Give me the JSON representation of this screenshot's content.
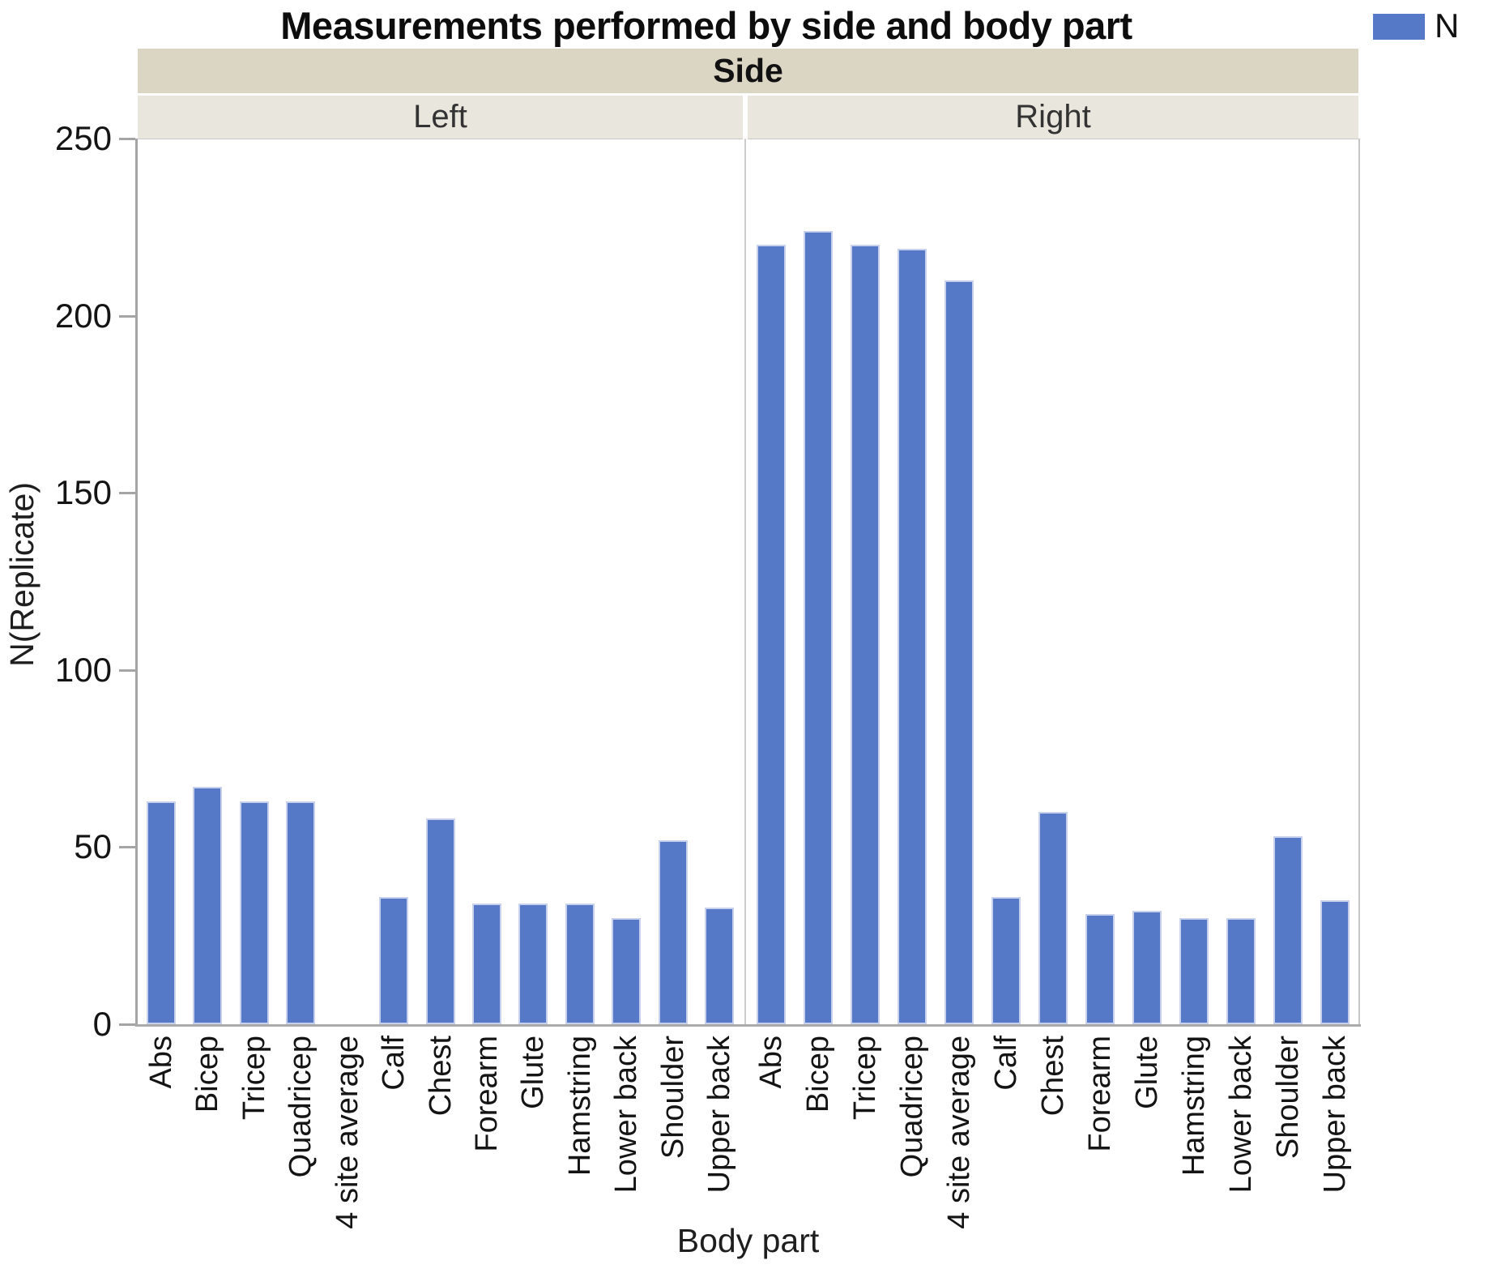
{
  "title": "Measurements performed by side and body part",
  "legend": {
    "label": "N",
    "position": "top-right"
  },
  "facet": {
    "header": "Side",
    "panels": [
      "Left",
      "Right"
    ]
  },
  "colors": {
    "bar_fill": "#5578C7",
    "bar_edge": "#c7d1ec",
    "facet_band": "#dbd6c4",
    "panel_band": "#e9e7dd",
    "axis_line": "#a5a5a5"
  },
  "chart_data": {
    "type": "bar",
    "title": "Measurements performed by side and body part",
    "facet_label": "Side",
    "xlabel": "Body part",
    "ylabel": "N(Replicate)",
    "ylim": [
      0,
      250
    ],
    "yticks": [
      0,
      50,
      100,
      150,
      200,
      250
    ],
    "grid": false,
    "legend_position": "top-right",
    "categories": [
      "Abs",
      "Bicep",
      "Tricep",
      "Quadricep",
      "4 site average",
      "Calf",
      "Chest",
      "Forearm",
      "Glute",
      "Hamstring",
      "Lower back",
      "Shoulder",
      "Upper back"
    ],
    "series": [
      {
        "name": "Left",
        "values": [
          63,
          67,
          63,
          63,
          0,
          36,
          58,
          34,
          34,
          34,
          30,
          52,
          33
        ]
      },
      {
        "name": "Right",
        "values": [
          220,
          224,
          220,
          219,
          210,
          36,
          60,
          31,
          32,
          30,
          30,
          53,
          35
        ]
      }
    ]
  }
}
